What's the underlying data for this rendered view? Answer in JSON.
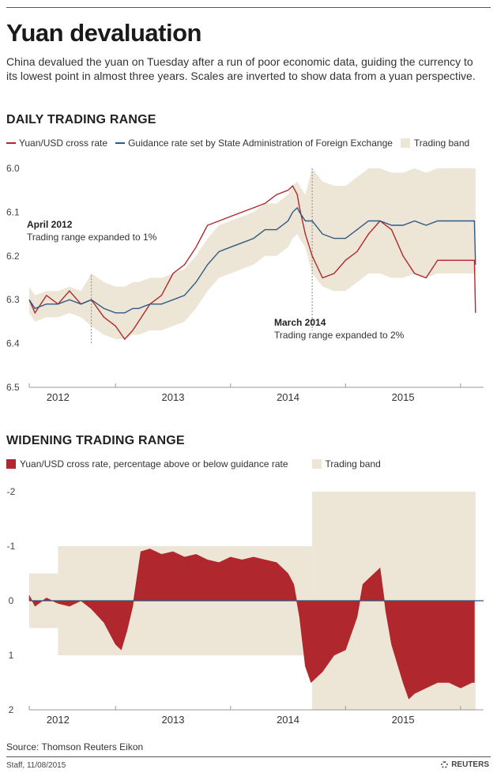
{
  "header": {
    "title": "Yuan devaluation",
    "subtitle": "China devalued the yuan on Tuesday after a run of poor economic data, guiding the currency to its lowest point in almost three years. Scales are inverted to show data from a yuan perspective."
  },
  "colors": {
    "cross_rate": "#b0282e",
    "guidance": "#2f5a84",
    "band": "#ede6d6",
    "axis": "#999999",
    "zero_line": "#2f4f7f"
  },
  "chart_data": [
    {
      "type": "line",
      "title": "DAILY TRADING RANGE",
      "legend": [
        "Yuan/USD cross rate",
        "Guidance rate set by State Administration of Foreign Exchange",
        "Trading band"
      ],
      "y_inverted": true,
      "ylim": [
        6.0,
        6.5
      ],
      "yticks": [
        "6.0",
        "6.1",
        "6.2",
        "6.3",
        "6.4",
        "6.5"
      ],
      "xlim": [
        2011.75,
        2015.7
      ],
      "xtick_labels": [
        {
          "label": "2012",
          "x": 2012.0
        },
        {
          "label": "2013",
          "x": 2013.0
        },
        {
          "label": "2014",
          "x": 2014.0
        },
        {
          "label": "2015",
          "x": 2015.0
        }
      ],
      "annotations": [
        {
          "heading": "April 2012",
          "text": "Trading range expanded to 1%",
          "x": 2012.29
        },
        {
          "heading": "March 2014",
          "text": "Trading range expanded to 2%",
          "x": 2014.21
        }
      ],
      "series": [
        {
          "name": "Yuan/USD cross rate",
          "x": [
            2011.75,
            2011.8,
            2011.9,
            2012.0,
            2012.1,
            2012.2,
            2012.29,
            2012.4,
            2012.5,
            2012.58,
            2012.65,
            2012.7,
            2012.8,
            2012.9,
            2013.0,
            2013.1,
            2013.2,
            2013.3,
            2013.4,
            2013.5,
            2013.6,
            2013.7,
            2013.8,
            2013.9,
            2014.0,
            2014.04,
            2014.08,
            2014.1,
            2014.15,
            2014.21,
            2014.3,
            2014.4,
            2014.5,
            2014.6,
            2014.7,
            2014.8,
            2014.9,
            2015.0,
            2015.1,
            2015.2,
            2015.3,
            2015.4,
            2015.5,
            2015.6,
            2015.62,
            2015.63
          ],
          "values": [
            6.3,
            6.33,
            6.29,
            6.31,
            6.28,
            6.31,
            6.3,
            6.34,
            6.36,
            6.39,
            6.37,
            6.35,
            6.31,
            6.29,
            6.24,
            6.22,
            6.18,
            6.13,
            6.12,
            6.11,
            6.1,
            6.09,
            6.08,
            6.06,
            6.05,
            6.04,
            6.06,
            6.09,
            6.15,
            6.2,
            6.25,
            6.24,
            6.21,
            6.19,
            6.15,
            6.12,
            6.14,
            6.2,
            6.24,
            6.25,
            6.21,
            6.21,
            6.21,
            6.21,
            6.21,
            6.33
          ]
        },
        {
          "name": "Guidance rate set by State Administration of Foreign Exchange",
          "x": [
            2011.75,
            2011.8,
            2011.9,
            2012.0,
            2012.1,
            2012.2,
            2012.29,
            2012.4,
            2012.5,
            2012.58,
            2012.65,
            2012.7,
            2012.8,
            2012.9,
            2013.0,
            2013.1,
            2013.2,
            2013.3,
            2013.4,
            2013.5,
            2013.6,
            2013.7,
            2013.8,
            2013.9,
            2014.0,
            2014.04,
            2014.08,
            2014.1,
            2014.15,
            2014.21,
            2014.3,
            2014.4,
            2014.5,
            2014.6,
            2014.7,
            2014.8,
            2014.9,
            2015.0,
            2015.1,
            2015.2,
            2015.3,
            2015.4,
            2015.5,
            2015.6,
            2015.62,
            2015.63
          ],
          "values": [
            6.3,
            6.32,
            6.31,
            6.31,
            6.3,
            6.31,
            6.3,
            6.32,
            6.33,
            6.33,
            6.32,
            6.32,
            6.31,
            6.31,
            6.3,
            6.29,
            6.26,
            6.22,
            6.19,
            6.18,
            6.17,
            6.16,
            6.14,
            6.14,
            6.12,
            6.1,
            6.09,
            6.1,
            6.12,
            6.12,
            6.15,
            6.16,
            6.16,
            6.14,
            6.12,
            6.12,
            6.13,
            6.13,
            6.12,
            6.13,
            6.12,
            6.12,
            6.12,
            6.12,
            6.12,
            6.22
          ]
        }
      ],
      "band": {
        "name": "Trading band",
        "x": [
          2011.75,
          2011.8,
          2011.9,
          2012.0,
          2012.1,
          2012.2,
          2012.29,
          2012.4,
          2012.5,
          2012.58,
          2012.65,
          2012.7,
          2012.8,
          2012.9,
          2013.0,
          2013.1,
          2013.2,
          2013.3,
          2013.4,
          2013.5,
          2013.6,
          2013.7,
          2013.8,
          2013.9,
          2014.0,
          2014.04,
          2014.08,
          2014.1,
          2014.15,
          2014.21,
          2014.3,
          2014.4,
          2014.5,
          2014.6,
          2014.7,
          2014.8,
          2014.9,
          2015.0,
          2015.1,
          2015.2,
          2015.3,
          2015.4,
          2015.5,
          2015.6,
          2015.62,
          2015.63
        ],
        "lower": [
          6.27,
          6.29,
          6.28,
          6.28,
          6.27,
          6.28,
          6.24,
          6.26,
          6.27,
          6.27,
          6.26,
          6.26,
          6.25,
          6.25,
          6.24,
          6.23,
          6.2,
          6.16,
          6.13,
          6.12,
          6.11,
          6.1,
          6.08,
          6.08,
          6.06,
          6.04,
          6.03,
          6.04,
          6.06,
          6.0,
          6.03,
          6.04,
          6.04,
          6.02,
          6.0,
          6.0,
          6.01,
          6.01,
          6.0,
          6.01,
          6.0,
          6.0,
          6.0,
          6.0,
          6.0,
          6.0
        ],
        "upper": [
          6.33,
          6.35,
          6.34,
          6.34,
          6.33,
          6.34,
          6.36,
          6.38,
          6.39,
          6.39,
          6.38,
          6.38,
          6.37,
          6.37,
          6.36,
          6.35,
          6.32,
          6.28,
          6.25,
          6.24,
          6.23,
          6.22,
          6.2,
          6.2,
          6.18,
          6.16,
          6.15,
          6.16,
          6.18,
          6.24,
          6.27,
          6.28,
          6.28,
          6.26,
          6.24,
          6.24,
          6.25,
          6.25,
          6.24,
          6.25,
          6.24,
          6.24,
          6.24,
          6.24,
          6.24,
          6.24
        ]
      }
    },
    {
      "type": "area",
      "title": "WIDENING TRADING RANGE",
      "legend": [
        "Yuan/USD cross rate, percentage above or below guidance rate",
        "Trading band"
      ],
      "y_inverted": true,
      "ylim": [
        -2,
        2
      ],
      "yticks": [
        "-2",
        "-1",
        "0",
        "1",
        "2"
      ],
      "xlim": [
        2011.75,
        2015.7
      ],
      "xtick_labels": [
        {
          "label": "2012",
          "x": 2012.0
        },
        {
          "label": "2013",
          "x": 2013.0
        },
        {
          "label": "2014",
          "x": 2014.0
        },
        {
          "label": "2015",
          "x": 2015.0
        }
      ],
      "series": [
        {
          "name": "Yuan/USD cross rate, percentage above or below guidance rate",
          "x": [
            2011.75,
            2011.8,
            2011.9,
            2012.0,
            2012.1,
            2012.2,
            2012.29,
            2012.4,
            2012.5,
            2012.55,
            2012.6,
            2012.65,
            2012.72,
            2012.8,
            2012.9,
            2013.0,
            2013.1,
            2013.2,
            2013.3,
            2013.4,
            2013.5,
            2013.6,
            2013.7,
            2013.8,
            2013.9,
            2014.0,
            2014.05,
            2014.1,
            2014.15,
            2014.2,
            2014.3,
            2014.4,
            2014.5,
            2014.6,
            2014.65,
            2014.7,
            2014.75,
            2014.8,
            2014.85,
            2014.9,
            2015.0,
            2015.05,
            2015.1,
            2015.2,
            2015.3,
            2015.4,
            2015.5,
            2015.6,
            2015.62
          ],
          "values": [
            -0.1,
            0.1,
            -0.05,
            0.05,
            0.1,
            0.0,
            0.15,
            0.4,
            0.8,
            0.9,
            0.55,
            0.1,
            -0.9,
            -0.95,
            -0.85,
            -0.9,
            -0.8,
            -0.85,
            -0.75,
            -0.7,
            -0.8,
            -0.75,
            -0.8,
            -0.75,
            -0.7,
            -0.5,
            -0.3,
            0.3,
            1.2,
            1.5,
            1.3,
            1.0,
            0.9,
            0.3,
            -0.3,
            -0.4,
            -0.5,
            -0.6,
            0.2,
            0.8,
            1.5,
            1.8,
            1.7,
            1.6,
            1.5,
            1.5,
            1.6,
            1.5,
            1.5
          ]
        }
      ],
      "band": {
        "name": "Trading band",
        "segments": [
          {
            "x_start": 2011.75,
            "x_end": 2012.0,
            "lower": -0.5,
            "upper": 0.5
          },
          {
            "x_start": 2012.0,
            "x_end": 2014.21,
            "lower": -1,
            "upper": 1
          },
          {
            "x_start": 2014.21,
            "x_end": 2015.63,
            "lower": -2,
            "upper": 2
          }
        ]
      }
    }
  ],
  "footer": {
    "source": "Source: Thomson Reuters Eikon",
    "staff": "Staff, 11/08/2015",
    "brand": "REUTERS"
  }
}
